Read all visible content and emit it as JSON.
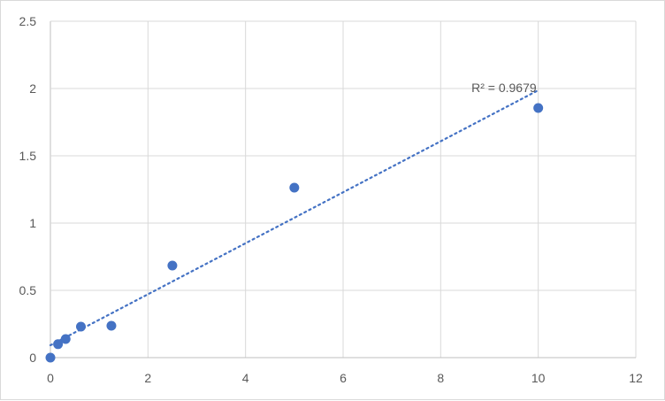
{
  "chart_data": {
    "type": "scatter",
    "title": "",
    "xlabel": "",
    "ylabel": "",
    "xlim": [
      0,
      12
    ],
    "ylim": [
      0,
      2.5
    ],
    "x_ticks": [
      "0",
      "2",
      "4",
      "6",
      "8",
      "10",
      "12"
    ],
    "y_ticks": [
      "0",
      "0.5",
      "1",
      "1.5",
      "2",
      "2.5"
    ],
    "grid": true,
    "legend": "none",
    "points": [
      {
        "x": 0,
        "y": 0
      },
      {
        "x": 0.156,
        "y": 0.1
      },
      {
        "x": 0.3125,
        "y": 0.138
      },
      {
        "x": 0.625,
        "y": 0.23
      },
      {
        "x": 1.25,
        "y": 0.237
      },
      {
        "x": 2.5,
        "y": 0.684
      },
      {
        "x": 5,
        "y": 1.263
      },
      {
        "x": 10,
        "y": 1.855
      }
    ],
    "trendline": {
      "type": "linear",
      "style": "dotted",
      "slope": 0.1895,
      "intercept": 0.092,
      "x_range": [
        0,
        10
      ],
      "label": "R² = 0.9679"
    },
    "colors": {
      "marker": "#4472c4",
      "grid": "#d9d9d9",
      "axis": "#bfbfbf"
    }
  }
}
